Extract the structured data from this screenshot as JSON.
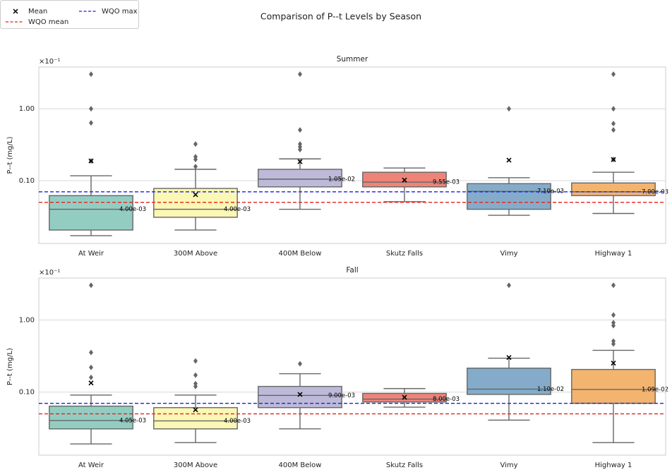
{
  "figure": {
    "title": "Comparison of P--t Levels by Season",
    "legend": [
      {
        "name": "Mean",
        "marker": "x",
        "color": "#000000"
      },
      {
        "name": "WQO mean",
        "marker": "dash",
        "color": "#e8201c"
      },
      {
        "name": "WQO max",
        "marker": "dash",
        "color": "#1f1fd8"
      }
    ]
  },
  "chart_data": [
    {
      "type": "box",
      "title": "Summer",
      "ylabel": "P--t (mg/L)",
      "y_offset_label": "×10⁻¹",
      "log_scale": true,
      "grid": true,
      "ylim": [
        0.00134,
        0.38
      ],
      "yticks": [
        {
          "value": 0.01,
          "label": "0.10"
        },
        {
          "value": 0.1,
          "label": "1.00"
        }
      ],
      "hlines": [
        {
          "value": 0.005,
          "color": "#e8201c"
        },
        {
          "value": 0.007,
          "color": "#1f1fd8"
        }
      ],
      "categories": [
        "At Weir",
        "300M Above",
        "400M Below",
        "Skutz Falls",
        "Vimy",
        "Highway 1"
      ],
      "colors": [
        "#93cdc2",
        "#fbf7b4",
        "#bdb9d8",
        "#ee8479",
        "#84acca",
        "#f2b46f"
      ],
      "boxes": [
        {
          "whislo": 0.00172,
          "q1": 0.00206,
          "med": 0.004,
          "q3": 0.0062,
          "whishi": 0.0117,
          "mean": 0.0188,
          "fliers": [
            0.0188,
            0.0636,
            0.1,
            0.302
          ]
        },
        {
          "whislo": 0.00206,
          "q1": 0.0031,
          "med": 0.004,
          "q3": 0.0078,
          "whishi": 0.0144,
          "mean": 0.0064,
          "fliers": [
            0.0157,
            0.0197,
            0.0215,
            0.0323
          ]
        },
        {
          "whislo": 0.004,
          "q1": 0.0082,
          "med": 0.0105,
          "q3": 0.0144,
          "whishi": 0.0201,
          "mean": 0.0184,
          "fliers": [
            0.027,
            0.0296,
            0.0323,
            0.0508,
            0.302
          ]
        },
        {
          "whislo": 0.0051,
          "q1": 0.0082,
          "med": 0.00955,
          "q3": 0.0131,
          "whishi": 0.015,
          "mean": 0.0102,
          "fliers": []
        },
        {
          "whislo": 0.0033,
          "q1": 0.004,
          "med": 0.0071,
          "q3": 0.0091,
          "whishi": 0.011,
          "mean": 0.0193,
          "fliers": [
            0.1
          ]
        },
        {
          "whislo": 0.0035,
          "q1": 0.0062,
          "med": 0.007,
          "q3": 0.0093,
          "whishi": 0.0131,
          "mean": 0.0197,
          "fliers": [
            0.0197,
            0.0508,
            0.0622,
            0.1,
            0.302
          ]
        }
      ],
      "median_labels": [
        "4.00e-03",
        "4.00e-03",
        "1.05e-02",
        "9.55e-03",
        "7.10e-03",
        "7.00e-03"
      ]
    },
    {
      "type": "box",
      "title": "Fall",
      "ylabel": "P--t (mg/L)",
      "y_offset_label": "×10⁻¹",
      "log_scale": true,
      "grid": true,
      "ylim": [
        0.00134,
        0.38
      ],
      "yticks": [
        {
          "value": 0.01,
          "label": "0.10"
        },
        {
          "value": 0.1,
          "label": "1.00"
        }
      ],
      "hlines": [
        {
          "value": 0.005,
          "color": "#e8201c"
        },
        {
          "value": 0.007,
          "color": "#1f1fd8"
        }
      ],
      "categories": [
        "At Weir",
        "300M Above",
        "400M Below",
        "Skutz Falls",
        "Vimy",
        "Highway 1"
      ],
      "colors": [
        "#93cdc2",
        "#fbf7b4",
        "#bdb9d8",
        "#ee8479",
        "#84acca",
        "#f2b46f"
      ],
      "boxes": [
        {
          "whislo": 0.00192,
          "q1": 0.0031,
          "med": 0.00405,
          "q3": 0.0064,
          "whishi": 0.0091,
          "mean": 0.0134,
          "fliers": [
            0.016,
            0.022,
            0.0354,
            0.302
          ]
        },
        {
          "whislo": 0.002,
          "q1": 0.0031,
          "med": 0.004,
          "q3": 0.0061,
          "whishi": 0.0091,
          "mean": 0.0057,
          "fliers": [
            0.012,
            0.0131,
            0.0172,
            0.027
          ]
        },
        {
          "whislo": 0.0031,
          "q1": 0.0061,
          "med": 0.009,
          "q3": 0.012,
          "whishi": 0.018,
          "mean": 0.0093,
          "fliers": [
            0.0247
          ]
        },
        {
          "whislo": 0.0062,
          "q1": 0.0073,
          "med": 0.008,
          "q3": 0.0096,
          "whishi": 0.0112,
          "mean": 0.0085,
          "fliers": []
        },
        {
          "whislo": 0.0041,
          "q1": 0.0093,
          "med": 0.011,
          "q3": 0.0215,
          "whishi": 0.0295,
          "mean": 0.0302,
          "fliers": [
            0.302
          ]
        },
        {
          "whislo": 0.002,
          "q1": 0.007,
          "med": 0.0109,
          "q3": 0.0206,
          "whishi": 0.0379,
          "mean": 0.0252,
          "fliers": [
            0.0465,
            0.0509,
            0.0834,
            0.0916,
            0.117,
            0.302
          ]
        }
      ],
      "median_labels": [
        "4.05e-03",
        "4.00e-03",
        "9.00e-03",
        "8.00e-03",
        "1.10e-02",
        "1.09e-02"
      ]
    }
  ]
}
